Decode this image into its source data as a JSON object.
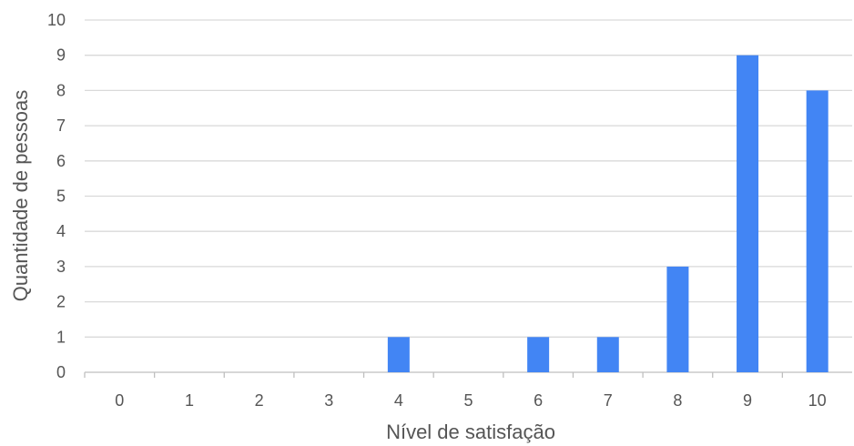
{
  "chart_data": {
    "type": "bar",
    "categories": [
      "0",
      "1",
      "2",
      "3",
      "4",
      "5",
      "6",
      "7",
      "8",
      "9",
      "10"
    ],
    "values": [
      0,
      0,
      0,
      0,
      1,
      0,
      1,
      1,
      3,
      9,
      8
    ],
    "xlabel": "Nível de satisfação",
    "ylabel": "Quantidade de pessoas",
    "ylim": [
      0,
      10
    ],
    "yticks": [
      "0",
      "1",
      "2",
      "3",
      "4",
      "5",
      "6",
      "7",
      "8",
      "9",
      "10"
    ],
    "grid": true,
    "bar_color": "#4285f4"
  }
}
